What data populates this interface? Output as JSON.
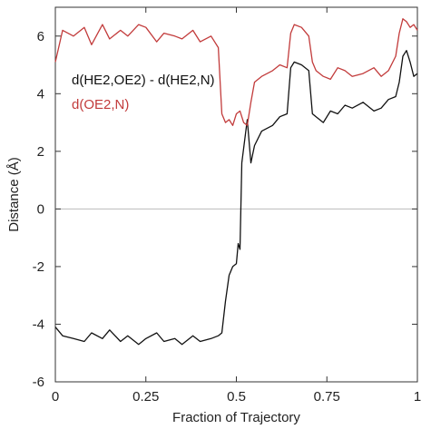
{
  "chart_data": {
    "type": "line",
    "xlabel": "Fraction of Trajectory",
    "ylabel": "Distance (Å)",
    "xlim": [
      0,
      1
    ],
    "ylim": [
      -6,
      7
    ],
    "x_ticks": [
      0,
      0.25,
      0.5,
      0.75,
      1
    ],
    "x_tick_labels": [
      "0",
      "0.25",
      "0.5",
      "0.75",
      "1"
    ],
    "y_ticks": [
      -6,
      -4,
      -2,
      0,
      2,
      4,
      6
    ],
    "y_tick_labels": [
      "-6",
      "-4",
      "-2",
      "0",
      "2",
      "4",
      "6"
    ],
    "zero_line": true,
    "grid": false,
    "legend_position": "upper-left",
    "series": [
      {
        "name": "d(HE2,OE2) - d(HE2,N)",
        "color": "#111111",
        "x": [
          0,
          0.02,
          0.05,
          0.08,
          0.1,
          0.13,
          0.15,
          0.18,
          0.2,
          0.23,
          0.25,
          0.28,
          0.3,
          0.33,
          0.35,
          0.38,
          0.4,
          0.43,
          0.45,
          0.46,
          0.47,
          0.48,
          0.49,
          0.5,
          0.505,
          0.51,
          0.515,
          0.52,
          0.525,
          0.53,
          0.54,
          0.55,
          0.57,
          0.6,
          0.62,
          0.64,
          0.65,
          0.66,
          0.68,
          0.7,
          0.71,
          0.72,
          0.74,
          0.76,
          0.78,
          0.8,
          0.82,
          0.85,
          0.88,
          0.9,
          0.92,
          0.94,
          0.95,
          0.96,
          0.97,
          0.98,
          0.99,
          1.0
        ],
        "values": [
          -4.1,
          -4.4,
          -4.5,
          -4.6,
          -4.3,
          -4.5,
          -4.2,
          -4.6,
          -4.4,
          -4.7,
          -4.5,
          -4.3,
          -4.6,
          -4.5,
          -4.7,
          -4.4,
          -4.6,
          -4.5,
          -4.4,
          -4.3,
          -3.2,
          -2.3,
          -2.0,
          -1.9,
          -1.2,
          -1.4,
          1.6,
          2.1,
          2.6,
          3.1,
          1.6,
          2.2,
          2.7,
          2.9,
          3.2,
          3.3,
          4.9,
          5.1,
          5.0,
          4.8,
          3.3,
          3.2,
          3.0,
          3.4,
          3.3,
          3.6,
          3.5,
          3.7,
          3.4,
          3.5,
          3.8,
          3.9,
          4.4,
          5.3,
          5.5,
          5.1,
          4.6,
          4.7
        ]
      },
      {
        "name": "d(OE2,N)",
        "color": "#c23b3b",
        "x": [
          0,
          0.02,
          0.05,
          0.08,
          0.1,
          0.13,
          0.15,
          0.18,
          0.2,
          0.23,
          0.25,
          0.28,
          0.3,
          0.33,
          0.35,
          0.38,
          0.4,
          0.43,
          0.45,
          0.46,
          0.47,
          0.48,
          0.49,
          0.5,
          0.51,
          0.52,
          0.53,
          0.54,
          0.55,
          0.57,
          0.6,
          0.62,
          0.64,
          0.65,
          0.66,
          0.68,
          0.7,
          0.71,
          0.72,
          0.74,
          0.76,
          0.78,
          0.8,
          0.82,
          0.85,
          0.88,
          0.9,
          0.92,
          0.94,
          0.95,
          0.96,
          0.97,
          0.98,
          0.99,
          1.0
        ],
        "values": [
          5.1,
          6.2,
          6.0,
          6.3,
          5.7,
          6.4,
          5.9,
          6.2,
          6.0,
          6.4,
          6.3,
          5.8,
          6.1,
          6.0,
          5.9,
          6.2,
          5.8,
          6.0,
          5.6,
          3.3,
          3.0,
          3.1,
          2.9,
          3.3,
          3.4,
          3.0,
          2.9,
          3.7,
          4.4,
          4.6,
          4.8,
          5.0,
          4.9,
          6.1,
          6.4,
          6.3,
          6.0,
          5.1,
          4.8,
          4.6,
          4.5,
          4.9,
          4.8,
          4.6,
          4.7,
          4.9,
          4.6,
          4.8,
          5.3,
          6.1,
          6.6,
          6.5,
          6.3,
          6.4,
          6.2
        ]
      }
    ]
  }
}
